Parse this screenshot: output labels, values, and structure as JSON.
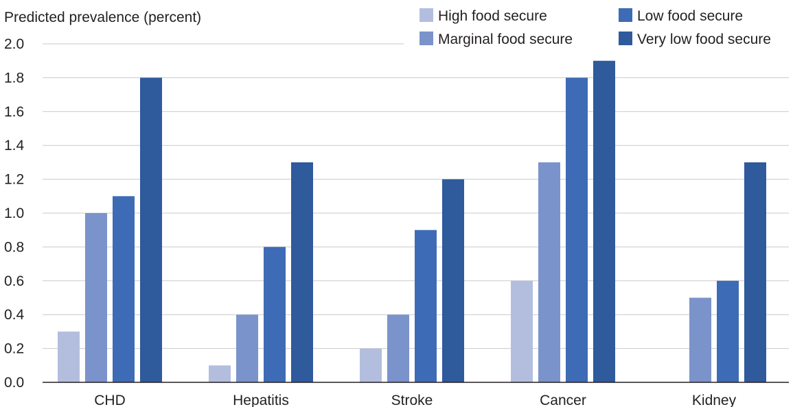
{
  "chart_data": {
    "type": "bar",
    "ylabel": "Predicted prevalence (percent)",
    "xlabel": "",
    "ylim": [
      0,
      2.0
    ],
    "yticks": [
      "0.0",
      "0.2",
      "0.4",
      "0.6",
      "0.8",
      "1.0",
      "1.2",
      "1.4",
      "1.6",
      "1.8",
      "2.0"
    ],
    "grid": "horizontal",
    "legend_position": "top-right",
    "categories": [
      "CHD",
      "Hepatitis",
      "Stroke",
      "Cancer",
      "Kidney"
    ],
    "series": [
      {
        "name": "High food secure",
        "color": "#b3bedf",
        "values": [
          0.3,
          0.1,
          0.2,
          0.6,
          null
        ]
      },
      {
        "name": "Marginal food secure",
        "color": "#7b93cb",
        "values": [
          1.0,
          0.4,
          0.4,
          1.3,
          0.5
        ]
      },
      {
        "name": "Low food secure",
        "color": "#3e6bb5",
        "values": [
          1.1,
          0.8,
          0.9,
          1.8,
          0.6
        ]
      },
      {
        "name": "Very low food secure",
        "color": "#2f5a9c",
        "values": [
          1.8,
          1.3,
          1.2,
          1.9,
          1.3
        ]
      }
    ],
    "colors": {
      "gridline": "#c9c9c9",
      "axis": "#231f20",
      "text": "#231f20"
    }
  }
}
